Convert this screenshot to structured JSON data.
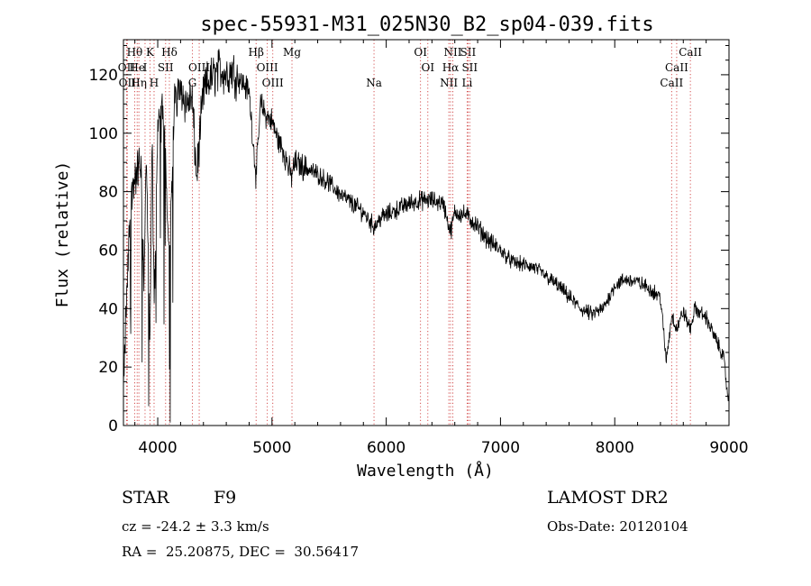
{
  "chart_data": {
    "type": "line",
    "title": "spec-55931-M31_025N30_B2_sp04-039.fits",
    "xlabel": "Wavelength (Å)",
    "ylabel": "Flux (relative)",
    "xlim": [
      3700,
      9000
    ],
    "ylim": [
      0,
      132
    ],
    "x_ticks": [
      4000,
      5000,
      6000,
      7000,
      8000,
      9000
    ],
    "y_ticks": [
      0,
      20,
      40,
      60,
      80,
      100,
      120
    ],
    "line_color": "#000000",
    "marker_color": "#d04040",
    "grid": false,
    "legend": "none",
    "spectrum_anchors": {
      "x": [
        3700,
        3720,
        3760,
        3800,
        3850,
        3880,
        3900,
        3933,
        3950,
        3968,
        4000,
        4050,
        4102,
        4150,
        4200,
        4250,
        4300,
        4340,
        4400,
        4450,
        4500,
        4550,
        4600,
        4650,
        4700,
        4750,
        4800,
        4861,
        4900,
        4950,
        5000,
        5050,
        5100,
        5170,
        5200,
        5300,
        5400,
        5500,
        5600,
        5700,
        5800,
        5893,
        5950,
        6000,
        6100,
        6200,
        6300,
        6400,
        6500,
        6563,
        6600,
        6700,
        6800,
        6900,
        7000,
        7100,
        7200,
        7300,
        7400,
        7500,
        7600,
        7700,
        7800,
        7900,
        8000,
        8100,
        8200,
        8300,
        8400,
        8450,
        8500,
        8542,
        8600,
        8662,
        8700,
        8800,
        8900,
        8950,
        8990
      ],
      "y": [
        10,
        35,
        75,
        85,
        90,
        50,
        92,
        25,
        100,
        40,
        102,
        108,
        60,
        112,
        116,
        110,
        112,
        85,
        114,
        118,
        120,
        122,
        120,
        122,
        119,
        117,
        114,
        85,
        110,
        106,
        104,
        98,
        94,
        85,
        90,
        88,
        86,
        83,
        79,
        76,
        73,
        68,
        71,
        72,
        74,
        76,
        77,
        77,
        76,
        66,
        73,
        72,
        68,
        63,
        60,
        56,
        55,
        54,
        51,
        48,
        44,
        40,
        38,
        40,
        48,
        50,
        49,
        47,
        44,
        22,
        38,
        33,
        39,
        33,
        40,
        37,
        28,
        24,
        10
      ]
    },
    "line_markers": [
      {
        "label": "Hθ",
        "x": 3798,
        "row": 0
      },
      {
        "label": "K",
        "x": 3933,
        "row": 0
      },
      {
        "label": "Hδ",
        "x": 4102,
        "row": 0
      },
      {
        "label": "Hβ",
        "x": 4861,
        "row": 0
      },
      {
        "label": "Mg",
        "x": 5175,
        "row": 0
      },
      {
        "label": "OI",
        "x": 6300,
        "row": 0
      },
      {
        "label": "NII",
        "x": 6583,
        "row": 0
      },
      {
        "label": "SII",
        "x": 6716,
        "row": 0
      },
      {
        "label": "CaII",
        "x": 8662,
        "row": 0
      },
      {
        "label": "OII",
        "x": 3727,
        "row": 1
      },
      {
        "label": "He",
        "x": 3820,
        "row": 1
      },
      {
        "label": "I",
        "x": 3889,
        "row": 1
      },
      {
        "label": "SII",
        "x": 4069,
        "row": 1
      },
      {
        "label": "OIII",
        "x": 4363,
        "row": 1
      },
      {
        "label": "OIII",
        "x": 4959,
        "row": 1
      },
      {
        "label": "OI",
        "x": 6364,
        "row": 1
      },
      {
        "label": "Hα",
        "x": 6563,
        "row": 1
      },
      {
        "label": "SII",
        "x": 6731,
        "row": 1
      },
      {
        "label": "CaII",
        "x": 8542,
        "row": 1
      },
      {
        "label": "OII",
        "x": 3734,
        "row": 2
      },
      {
        "label": "Hη",
        "x": 3835,
        "row": 2
      },
      {
        "label": "H",
        "x": 3968,
        "row": 2
      },
      {
        "label": "G",
        "x": 4304,
        "row": 2
      },
      {
        "label": "OIII",
        "x": 5007,
        "row": 2
      },
      {
        "label": "Na",
        "x": 5893,
        "row": 2
      },
      {
        "label": "NII",
        "x": 6548,
        "row": 2
      },
      {
        "label": "Li",
        "x": 6708,
        "row": 2
      },
      {
        "label": "CaII",
        "x": 8498,
        "row": 2
      }
    ]
  },
  "info": {
    "object_class": "STAR",
    "subclass": "F9",
    "survey": "LAMOST DR2",
    "redshift": "cz = -24.2 ± 3.3 km/s",
    "obs_date": "Obs-Date: 20120104",
    "coords": "RA =  25.20875, DEC =  30.56417"
  }
}
